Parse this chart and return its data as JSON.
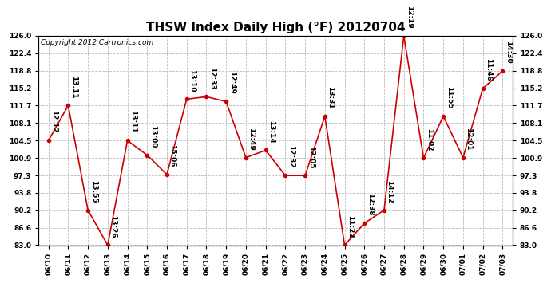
{
  "title": "THSW Index Daily High (°F) 20120704",
  "copyright": "Copyright 2012 Cartronics.com",
  "x_labels": [
    "06/10",
    "06/11",
    "06/12",
    "06/13",
    "06/14",
    "06/15",
    "06/16",
    "06/17",
    "06/18",
    "06/19",
    "06/20",
    "06/21",
    "06/22",
    "06/23",
    "06/24",
    "06/25",
    "06/26",
    "06/27",
    "06/28",
    "06/29",
    "06/30",
    "07/01",
    "07/02",
    "07/03"
  ],
  "y_values": [
    104.5,
    111.7,
    90.2,
    83.0,
    104.5,
    101.5,
    97.5,
    113.0,
    113.5,
    112.5,
    101.0,
    102.5,
    97.3,
    97.3,
    109.5,
    83.0,
    87.5,
    90.2,
    126.0,
    100.9,
    109.5,
    101.0,
    115.2,
    118.8
  ],
  "annotations": [
    "12:12",
    "13:11",
    "13:55",
    "13:26",
    "13:11",
    "13:00",
    "15:06",
    "13:10",
    "12:33",
    "12:49",
    "12:49",
    "13:14",
    "12:32",
    "12:05",
    "13:31",
    "11:22",
    "12:38",
    "14:12",
    "12:19",
    "11:02",
    "11:55",
    "12:01",
    "11:46",
    "14:30"
  ],
  "line_color": "#cc0000",
  "marker_color": "#cc0000",
  "bg_color": "#ffffff",
  "grid_color": "#bbbbbb",
  "ylim_min": 83.0,
  "ylim_max": 126.0,
  "yticks": [
    83.0,
    86.6,
    90.2,
    93.8,
    97.3,
    100.9,
    104.5,
    108.1,
    111.7,
    115.2,
    118.8,
    122.4,
    126.0
  ],
  "title_fontsize": 11,
  "annotation_fontsize": 6.5,
  "copyright_fontsize": 6.5
}
